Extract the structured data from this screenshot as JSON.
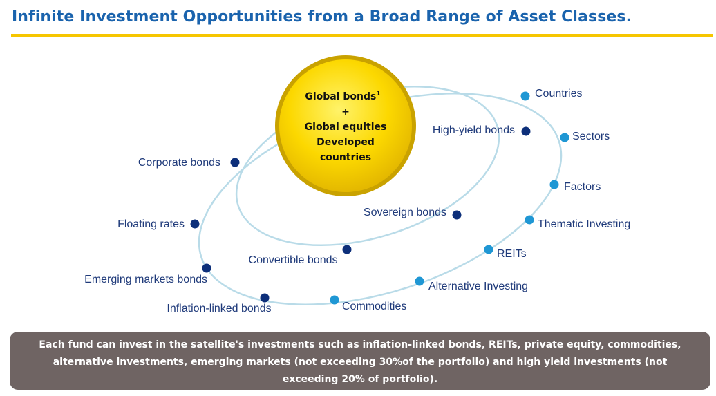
{
  "title": "Infinite Investment Opportunities from a Broad Range of Asset Classes.",
  "center": {
    "line1": "Global bonds",
    "sup": "1",
    "line2": "+",
    "line3": "Global equities",
    "line4": "Developed",
    "line5": "countries"
  },
  "inner_items": [
    {
      "label": "High-yield bonds"
    },
    {
      "label": "Sovereign bonds"
    },
    {
      "label": "Convertible bonds"
    },
    {
      "label": "Corporate bonds"
    },
    {
      "label": "Floating rates"
    },
    {
      "label": "Emerging markets bonds"
    },
    {
      "label": "Inflation-linked bonds"
    }
  ],
  "outer_items": [
    {
      "label": "Countries"
    },
    {
      "label": "Sectors"
    },
    {
      "label": "Factors"
    },
    {
      "label": "Thematic Investing"
    },
    {
      "label": "REITs"
    },
    {
      "label": "Alternative Investing"
    },
    {
      "label": "Commodities"
    }
  ],
  "colors": {
    "title": "#1a63ad",
    "rule": "#f6c600",
    "inner_dot": "#0d2f7a",
    "outer_dot": "#1f97d4",
    "ellipse": "#b9dbe8",
    "center_fill": "#fcd800",
    "center_ring": "#c9a200",
    "label": "#1f3a7a",
    "note_bg": "#6f6463"
  },
  "note": "Each fund can invest in the satellite's investments such as inflation-linked bonds, REITs, private equity, commodities, alternative investments, emerging markets (not exceeding 30%of the portfolio) and high yield investments (not exceeding 20% of portfolio)."
}
